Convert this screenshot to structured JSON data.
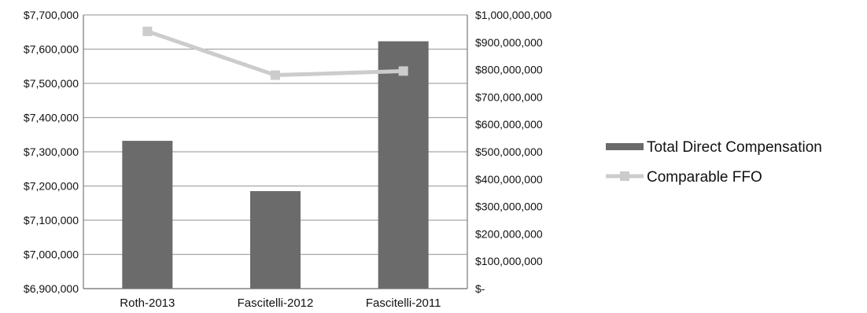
{
  "chart_data": {
    "type": "bar",
    "categories": [
      "Roth-2013",
      "Fascitelli-2012",
      "Fascitelli-2011"
    ],
    "series": [
      {
        "name": "Total Direct Compensation",
        "type": "bar",
        "axis": "left",
        "values": [
          7332000,
          7185000,
          7623000
        ],
        "color": "#6b6b6b"
      },
      {
        "name": "Comparable FFO",
        "type": "line",
        "axis": "right",
        "values": [
          940000000,
          780000000,
          795000000
        ],
        "color": "#cccccc"
      }
    ],
    "y_left": {
      "ylim": [
        6900000,
        7700000
      ],
      "ticks": [
        6900000,
        7000000,
        7100000,
        7200000,
        7300000,
        7400000,
        7500000,
        7600000,
        7700000
      ],
      "tick_labels": [
        "$6,900,000",
        "$7,000,000",
        "$7,100,000",
        "$7,200,000",
        "$7,300,000",
        "$7,400,000",
        "$7,500,000",
        "$7,600,000",
        "$7,700,000"
      ]
    },
    "y_right": {
      "ylim": [
        0,
        1000000000
      ],
      "ticks": [
        0,
        100000000,
        200000000,
        300000000,
        400000000,
        500000000,
        600000000,
        700000000,
        800000000,
        900000000,
        1000000000
      ],
      "tick_labels": [
        "$-",
        "$100,000,000",
        "$200,000,000",
        "$300,000,000",
        "$400,000,000",
        "$500,000,000",
        "$600,000,000",
        "$700,000,000",
        "$800,000,000",
        "$900,000,000",
        "$1,000,000,000"
      ]
    },
    "grid": true,
    "legend": "right"
  }
}
